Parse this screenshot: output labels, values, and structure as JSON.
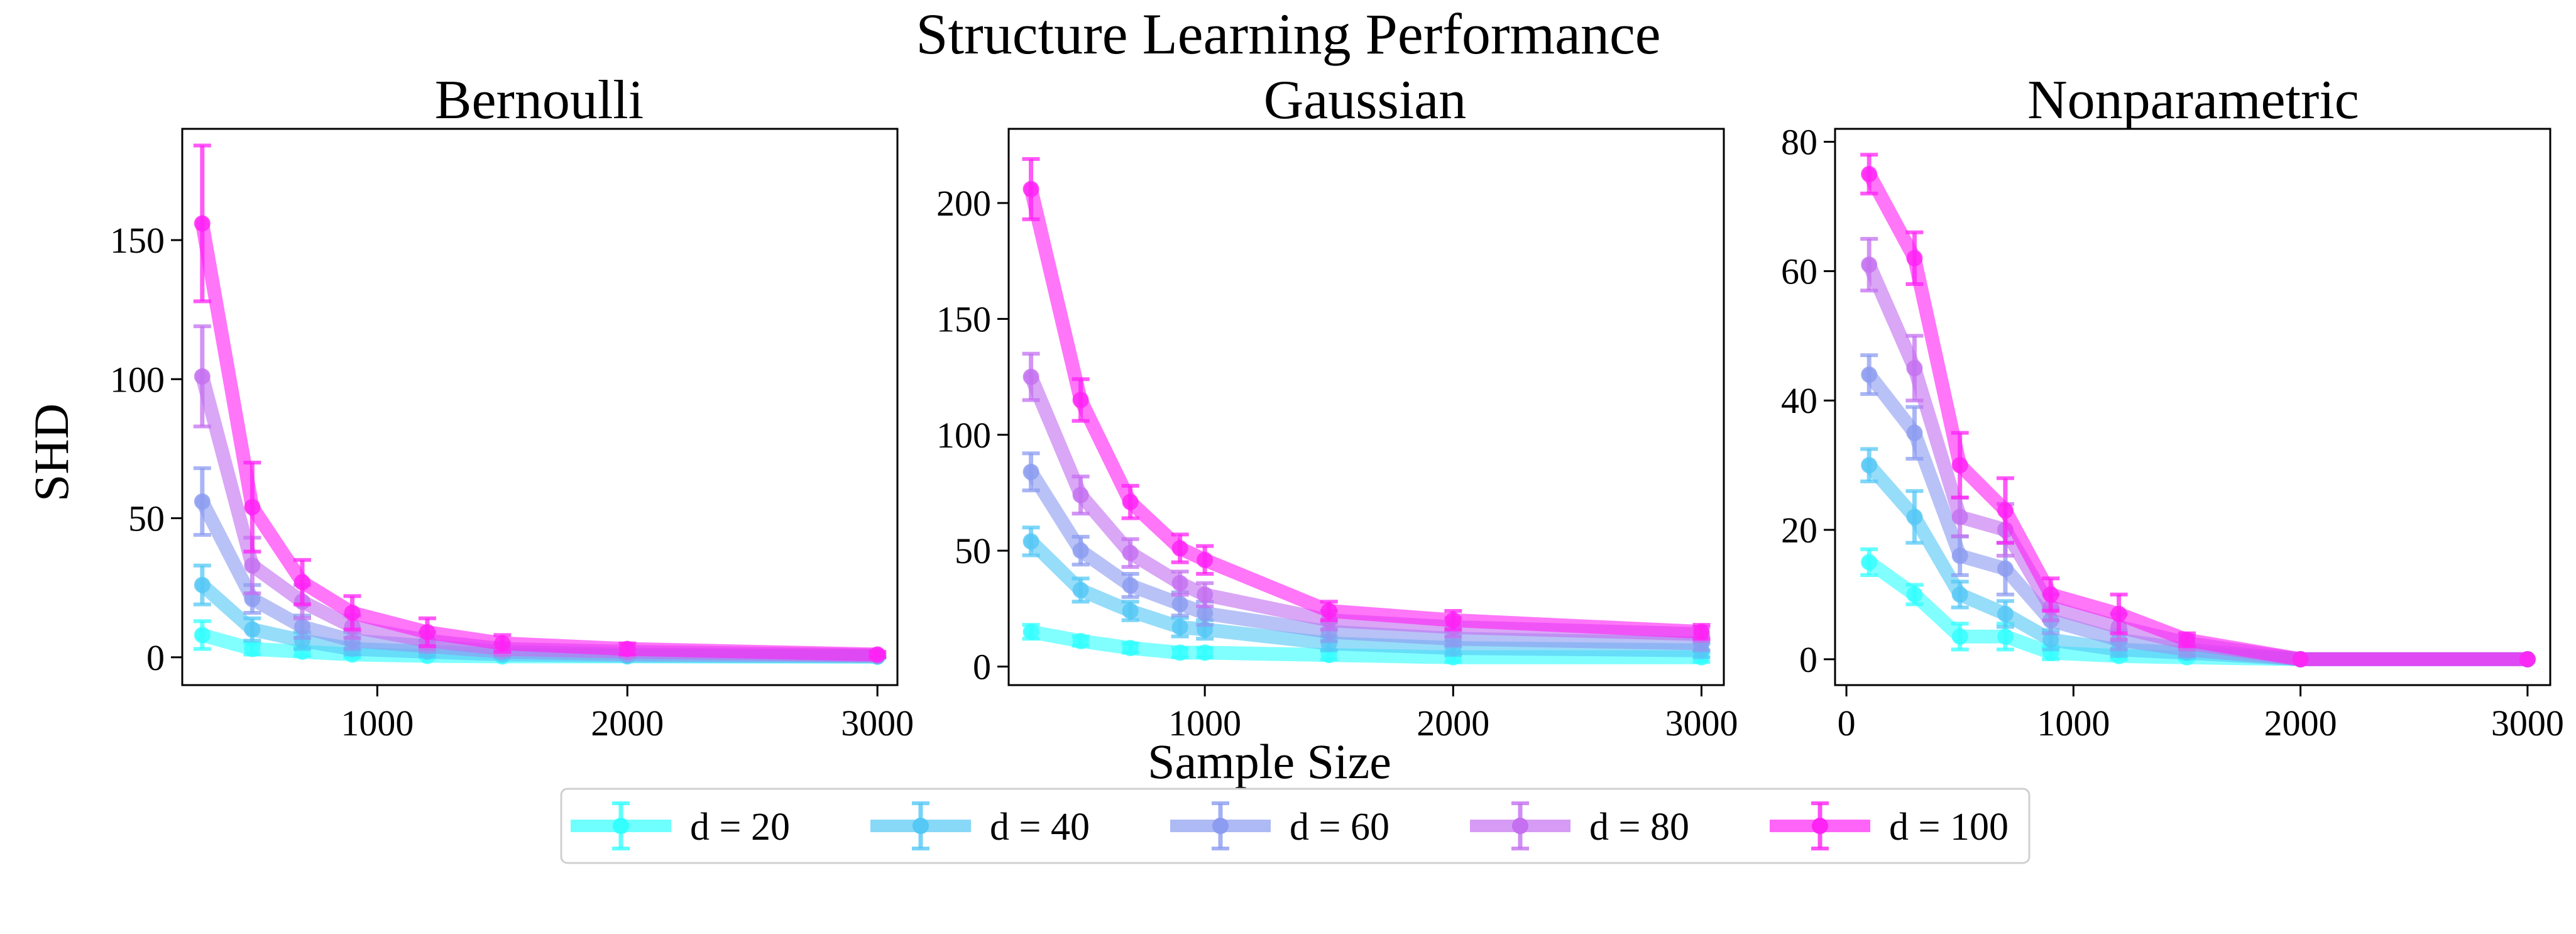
{
  "figure": {
    "title": "Structure Learning Performance",
    "xlabel": "Sample Size",
    "ylabel": "SHD"
  },
  "legend": {
    "placement": "bottom-center",
    "entries": [
      {
        "label": "d = 20",
        "color": "#33ffff"
      },
      {
        "label": "d = 40",
        "color": "#55c8f5"
      },
      {
        "label": "d = 60",
        "color": "#8c9cf0"
      },
      {
        "label": "d = 80",
        "color": "#c470f0"
      },
      {
        "label": "d = 100",
        "color": "#ff22f5"
      }
    ]
  },
  "chart_data": [
    {
      "type": "line",
      "title": "Bernoulli",
      "xlabel": "",
      "ylabel": "SHD",
      "xlim": [
        220,
        3080
      ],
      "ylim": [
        -10,
        190
      ],
      "xticks": [
        1000,
        2000,
        3000
      ],
      "yticks": [
        0,
        50,
        100,
        150
      ],
      "grid": false,
      "x": [
        300,
        500,
        700,
        900,
        1200,
        1500,
        2000,
        3000
      ],
      "series": [
        {
          "name": "d = 20",
          "values": [
            8,
            3,
            2,
            1,
            0.5,
            0.3,
            0.3,
            0.2
          ],
          "errors": [
            5,
            2,
            1.5,
            1,
            0.5,
            0.3,
            0.3,
            0.2
          ]
        },
        {
          "name": "d = 40",
          "values": [
            26,
            10,
            6,
            3,
            2,
            1,
            0.5,
            0.3
          ],
          "errors": [
            7,
            4,
            3,
            2,
            1.5,
            1,
            0.5,
            0.3
          ]
        },
        {
          "name": "d = 60",
          "values": [
            56,
            21,
            11,
            6,
            4,
            2,
            1,
            0.5
          ],
          "errors": [
            12,
            5,
            4,
            3,
            2,
            1.5,
            1,
            0.5
          ]
        },
        {
          "name": "d = 80",
          "values": [
            101,
            33,
            20,
            11,
            6,
            3,
            2,
            0.7
          ],
          "errors": [
            18,
            10,
            6,
            4,
            3,
            2,
            1,
            0.5
          ]
        },
        {
          "name": "d = 100",
          "values": [
            156,
            54,
            27,
            16,
            9,
            5,
            3,
            1
          ],
          "errors": [
            28,
            16,
            8,
            6,
            5,
            3,
            2,
            1
          ]
        }
      ]
    },
    {
      "type": "line",
      "title": "Gaussian",
      "xlabel": "",
      "ylabel": "",
      "xlim": [
        210,
        3090
      ],
      "ylim": [
        -8,
        232
      ],
      "xticks": [
        1000,
        2000,
        3000
      ],
      "yticks": [
        0,
        50,
        100,
        150,
        200
      ],
      "grid": false,
      "x": [
        300,
        500,
        700,
        900,
        1000,
        1500,
        2000,
        3000
      ],
      "series": [
        {
          "name": "d = 20",
          "values": [
            15,
            11,
            8,
            6,
            6,
            5,
            4,
            4
          ],
          "errors": [
            3,
            2,
            2,
            2,
            2,
            2,
            2,
            2
          ]
        },
        {
          "name": "d = 40",
          "values": [
            54,
            33,
            24,
            17,
            16,
            10,
            8,
            7
          ],
          "errors": [
            6,
            5,
            4,
            4,
            4,
            3,
            3,
            3
          ]
        },
        {
          "name": "d = 60",
          "values": [
            84,
            50,
            35,
            27,
            23,
            15,
            12,
            10
          ],
          "errors": [
            8,
            6,
            5,
            5,
            5,
            4,
            3,
            3
          ]
        },
        {
          "name": "d = 80",
          "values": [
            125,
            74,
            49,
            36,
            31,
            20,
            17,
            14
          ],
          "errors": [
            10,
            8,
            6,
            5,
            5,
            4,
            4,
            3
          ]
        },
        {
          "name": "d = 100",
          "values": [
            206,
            115,
            71,
            51,
            46,
            24,
            20,
            15
          ],
          "errors": [
            13,
            9,
            7,
            6,
            6,
            4,
            4,
            3
          ]
        }
      ]
    },
    {
      "type": "line",
      "title": "Nonparametric",
      "xlabel": "",
      "ylabel": "",
      "xlim": [
        -50,
        3100
      ],
      "ylim": [
        -4,
        82
      ],
      "xticks": [
        0,
        1000,
        2000,
        3000
      ],
      "yticks": [
        0,
        20,
        40,
        60,
        80
      ],
      "grid": false,
      "x": [
        100,
        300,
        500,
        700,
        900,
        1200,
        1500,
        2000,
        3000
      ],
      "series": [
        {
          "name": "d = 20",
          "values": [
            15,
            10,
            3.5,
            3.5,
            1,
            0.5,
            0.3,
            0,
            0
          ],
          "errors": [
            2,
            1.5,
            2,
            2,
            1,
            0.5,
            0.3,
            0,
            0
          ]
        },
        {
          "name": "d = 40",
          "values": [
            30,
            22,
            10,
            7,
            3,
            1.5,
            1,
            0,
            0
          ],
          "errors": [
            2.5,
            4,
            2,
            2,
            1.5,
            1,
            0.5,
            0,
            0
          ]
        },
        {
          "name": "d = 60",
          "values": [
            44,
            35,
            16,
            14,
            6,
            3,
            1.5,
            0,
            0
          ],
          "errors": [
            3,
            4,
            3,
            4,
            2,
            1.5,
            1,
            0,
            0
          ]
        },
        {
          "name": "d = 80",
          "values": [
            61,
            45,
            22,
            20,
            8,
            5,
            2.5,
            0,
            0
          ],
          "errors": [
            4,
            5,
            3,
            4,
            2,
            2,
            1,
            0,
            0
          ]
        },
        {
          "name": "d = 100",
          "values": [
            75,
            62,
            30,
            23,
            10,
            7,
            3,
            0,
            0
          ],
          "errors": [
            3,
            4,
            5,
            5,
            2.5,
            3,
            1,
            0,
            0
          ]
        }
      ]
    }
  ]
}
